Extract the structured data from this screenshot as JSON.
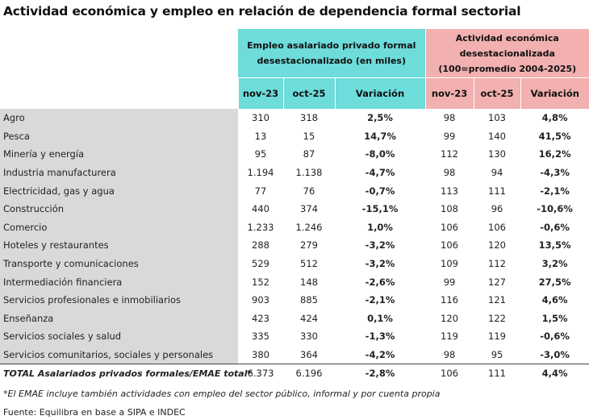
{
  "title": "Actividad económica y empleo en relación de dependencia formal sectorial",
  "groups": {
    "employment": "Empleo asalariado privado formal desestacionalizado (en miles)",
    "activity_l1": "Actividad económica",
    "activity_l2": "desestacionalizada",
    "activity_l3": "(100=promedio 2004-2025)"
  },
  "columns": [
    "nov-23",
    "oct-25",
    "Variación",
    "nov-23",
    "oct-25",
    "Variación"
  ],
  "rows": [
    {
      "sector": "Agro",
      "v": [
        "310",
        "318",
        "2,5%",
        "98",
        "103",
        "4,8%"
      ]
    },
    {
      "sector": "Pesca",
      "v": [
        "13",
        "15",
        "14,7%",
        "99",
        "140",
        "41,5%"
      ]
    },
    {
      "sector": "Minería y energía",
      "v": [
        "95",
        "87",
        "-8,0%",
        "112",
        "130",
        "16,2%"
      ]
    },
    {
      "sector": "Industria manufacturera",
      "v": [
        "1.194",
        "1.138",
        "-4,7%",
        "98",
        "94",
        "-4,3%"
      ]
    },
    {
      "sector": "Electricidad, gas y agua",
      "v": [
        "77",
        "76",
        "-0,7%",
        "113",
        "111",
        "-2,1%"
      ]
    },
    {
      "sector": "Construcción",
      "v": [
        "440",
        "374",
        "-15,1%",
        "108",
        "96",
        "-10,6%"
      ]
    },
    {
      "sector": "Comercio",
      "v": [
        "1.233",
        "1.246",
        "1,0%",
        "106",
        "106",
        "-0,6%"
      ]
    },
    {
      "sector": "Hoteles y restaurantes",
      "v": [
        "288",
        "279",
        "-3,2%",
        "106",
        "120",
        "13,5%"
      ]
    },
    {
      "sector": "Transporte y comunicaciones",
      "v": [
        "529",
        "512",
        "-3,2%",
        "109",
        "112",
        "3,2%"
      ]
    },
    {
      "sector": "Intermediación financiera",
      "v": [
        "152",
        "148",
        "-2,6%",
        "99",
        "127",
        "27,5%"
      ]
    },
    {
      "sector": "Servicios profesionales e inmobiliarios",
      "v": [
        "903",
        "885",
        "-2,1%",
        "116",
        "121",
        "4,6%"
      ]
    },
    {
      "sector": "Enseñanza",
      "v": [
        "423",
        "424",
        "0,1%",
        "120",
        "122",
        "1,5%"
      ]
    },
    {
      "sector": "Servicios sociales y  salud",
      "v": [
        "335",
        "330",
        "-1,3%",
        "119",
        "119",
        "-0,6%"
      ]
    },
    {
      "sector": "Servicios comunitarios, sociales y personales",
      "v": [
        "380",
        "364",
        "-4,2%",
        "98",
        "95",
        "-3,0%"
      ]
    }
  ],
  "total": {
    "sector": "TOTAL Asalariados privados formales/EMAE total*",
    "v": [
      "6.373",
      "6.196",
      "-2,8%",
      "106",
      "111",
      "4,4%"
    ]
  },
  "note": "*El EMAE incluye también actividades con empleo del sector público, informal y por cuenta propia",
  "source": "Fuente: Equilibra en base a SIPA e INDEC"
}
